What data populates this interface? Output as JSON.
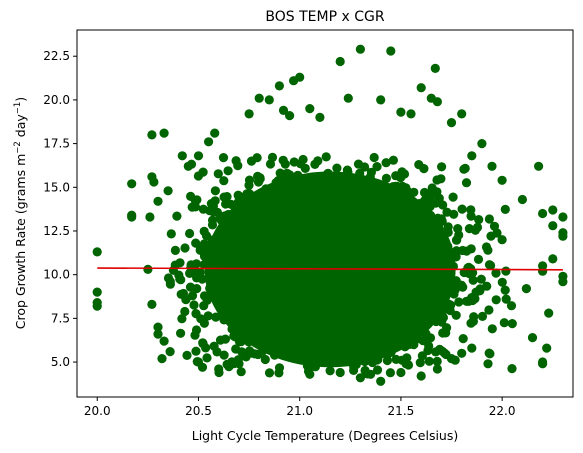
{
  "chart_data": {
    "type": "scatter",
    "title": "BOS TEMP x CGR",
    "xlabel": "Light Cycle Temperature (Degrees Celsius)",
    "ylabel_main": "Crop Growth Rate (grams m",
    "ylabel_sup1": "−2",
    "ylabel_mid": " day",
    "ylabel_sup2": "−1",
    "ylabel_end": ")",
    "xlim": [
      19.9,
      22.35
    ],
    "ylim": [
      3.0,
      24.0
    ],
    "xticks": [
      20.0,
      20.5,
      21.0,
      21.5,
      22.0
    ],
    "xtick_labels": [
      "20.0",
      "20.5",
      "21.0",
      "21.5",
      "22.0"
    ],
    "yticks": [
      5.0,
      7.5,
      10.0,
      12.5,
      15.0,
      17.5,
      20.0,
      22.5
    ],
    "ytick_labels": [
      "5.0",
      "7.5",
      "10.0",
      "12.5",
      "15.0",
      "17.5",
      "20.0",
      "22.5"
    ],
    "grid": false,
    "colors": {
      "points": "#006400",
      "trend": "#e00000"
    },
    "trend_line": {
      "x": [
        20.0,
        22.3
      ],
      "y": [
        10.38,
        10.28
      ]
    },
    "cloud": {
      "center_x": 21.15,
      "center_y": 10.3,
      "sd_x": 0.33,
      "sd_y": 2.85,
      "x_range": [
        20.35,
        22.05
      ],
      "y_range": [
        4.3,
        16.8
      ],
      "dense_ellipse": {
        "rx": 0.62,
        "ry": 5.6
      }
    },
    "series": [
      {
        "values": [
          [
            20.0,
            11.3
          ],
          [
            20.0,
            9.0
          ],
          [
            20.0,
            8.4
          ],
          [
            20.0,
            8.2
          ],
          [
            20.17,
            15.2
          ],
          [
            20.17,
            13.3
          ],
          [
            20.17,
            13.4
          ],
          [
            20.25,
            10.3
          ],
          [
            20.26,
            13.3
          ],
          [
            20.27,
            18.0
          ],
          [
            20.27,
            15.6
          ],
          [
            20.28,
            15.3
          ],
          [
            20.3,
            14.2
          ],
          [
            20.3,
            7.0
          ],
          [
            20.32,
            5.2
          ],
          [
            20.33,
            18.1
          ],
          [
            20.35,
            14.8
          ],
          [
            20.27,
            8.3
          ],
          [
            20.3,
            6.6
          ],
          [
            20.33,
            6.2
          ],
          [
            20.36,
            5.6
          ],
          [
            20.42,
            16.8
          ],
          [
            20.45,
            16.2
          ],
          [
            20.5,
            16.8
          ],
          [
            20.55,
            17.6
          ],
          [
            20.58,
            18.1
          ],
          [
            20.5,
            5.0
          ],
          [
            20.52,
            4.7
          ],
          [
            20.6,
            4.6
          ],
          [
            20.7,
            4.9
          ],
          [
            20.75,
            19.2
          ],
          [
            20.8,
            20.1
          ],
          [
            20.85,
            20.0
          ],
          [
            20.9,
            20.8
          ],
          [
            20.92,
            19.4
          ],
          [
            20.95,
            19.1
          ],
          [
            20.97,
            21.1
          ],
          [
            21.0,
            21.3
          ],
          [
            21.05,
            19.5
          ],
          [
            21.1,
            19.0
          ],
          [
            21.2,
            22.2
          ],
          [
            21.24,
            20.1
          ],
          [
            21.3,
            22.9
          ],
          [
            21.45,
            22.8
          ],
          [
            21.4,
            20.0
          ],
          [
            21.5,
            19.3
          ],
          [
            21.55,
            19.2
          ],
          [
            21.6,
            20.7
          ],
          [
            21.65,
            20.1
          ],
          [
            21.67,
            21.8
          ],
          [
            21.68,
            19.9
          ],
          [
            21.75,
            18.7
          ],
          [
            21.8,
            19.2
          ],
          [
            21.85,
            16.8
          ],
          [
            21.9,
            17.5
          ],
          [
            21.95,
            16.2
          ],
          [
            22.0,
            15.4
          ],
          [
            21.05,
            4.3
          ],
          [
            21.15,
            4.5
          ],
          [
            21.2,
            4.4
          ],
          [
            21.3,
            4.1
          ],
          [
            21.35,
            4.3
          ],
          [
            21.4,
            3.9
          ],
          [
            21.5,
            4.4
          ],
          [
            21.6,
            4.2
          ],
          [
            21.68,
            4.6
          ],
          [
            21.75,
            5.2
          ],
          [
            21.8,
            5.5
          ],
          [
            21.85,
            5.8
          ],
          [
            21.93,
            4.9
          ],
          [
            22.0,
            12.0
          ],
          [
            22.02,
            8.6
          ],
          [
            22.05,
            7.2
          ],
          [
            22.1,
            14.3
          ],
          [
            22.12,
            9.2
          ],
          [
            22.15,
            6.4
          ],
          [
            22.18,
            16.2
          ],
          [
            22.2,
            13.5
          ],
          [
            22.2,
            10.5
          ],
          [
            22.2,
            10.2
          ],
          [
            22.22,
            5.8
          ],
          [
            22.2,
            4.9
          ],
          [
            22.2,
            5.0
          ],
          [
            22.23,
            7.8
          ],
          [
            22.25,
            13.7
          ],
          [
            22.25,
            12.8
          ],
          [
            22.3,
            13.3
          ],
          [
            22.3,
            12.4
          ],
          [
            22.3,
            12.2
          ],
          [
            22.3,
            9.9
          ],
          [
            22.3,
            9.6
          ],
          [
            22.25,
            10.9
          ]
        ]
      },
      {
        "values": [
          [
            21.12,
            10.27
          ],
          [
            21.71,
            7.55
          ],
          [
            20.77,
            12.4
          ],
          [
            21.46,
            9.09
          ],
          [
            20.9,
            13.81
          ],
          [
            21.28,
            6.68
          ],
          [
            21.03,
            11.52
          ],
          [
            21.58,
            12.93
          ],
          [
            20.62,
            8.24
          ],
          [
            21.36,
            14.7
          ]
        ]
      }
    ]
  }
}
